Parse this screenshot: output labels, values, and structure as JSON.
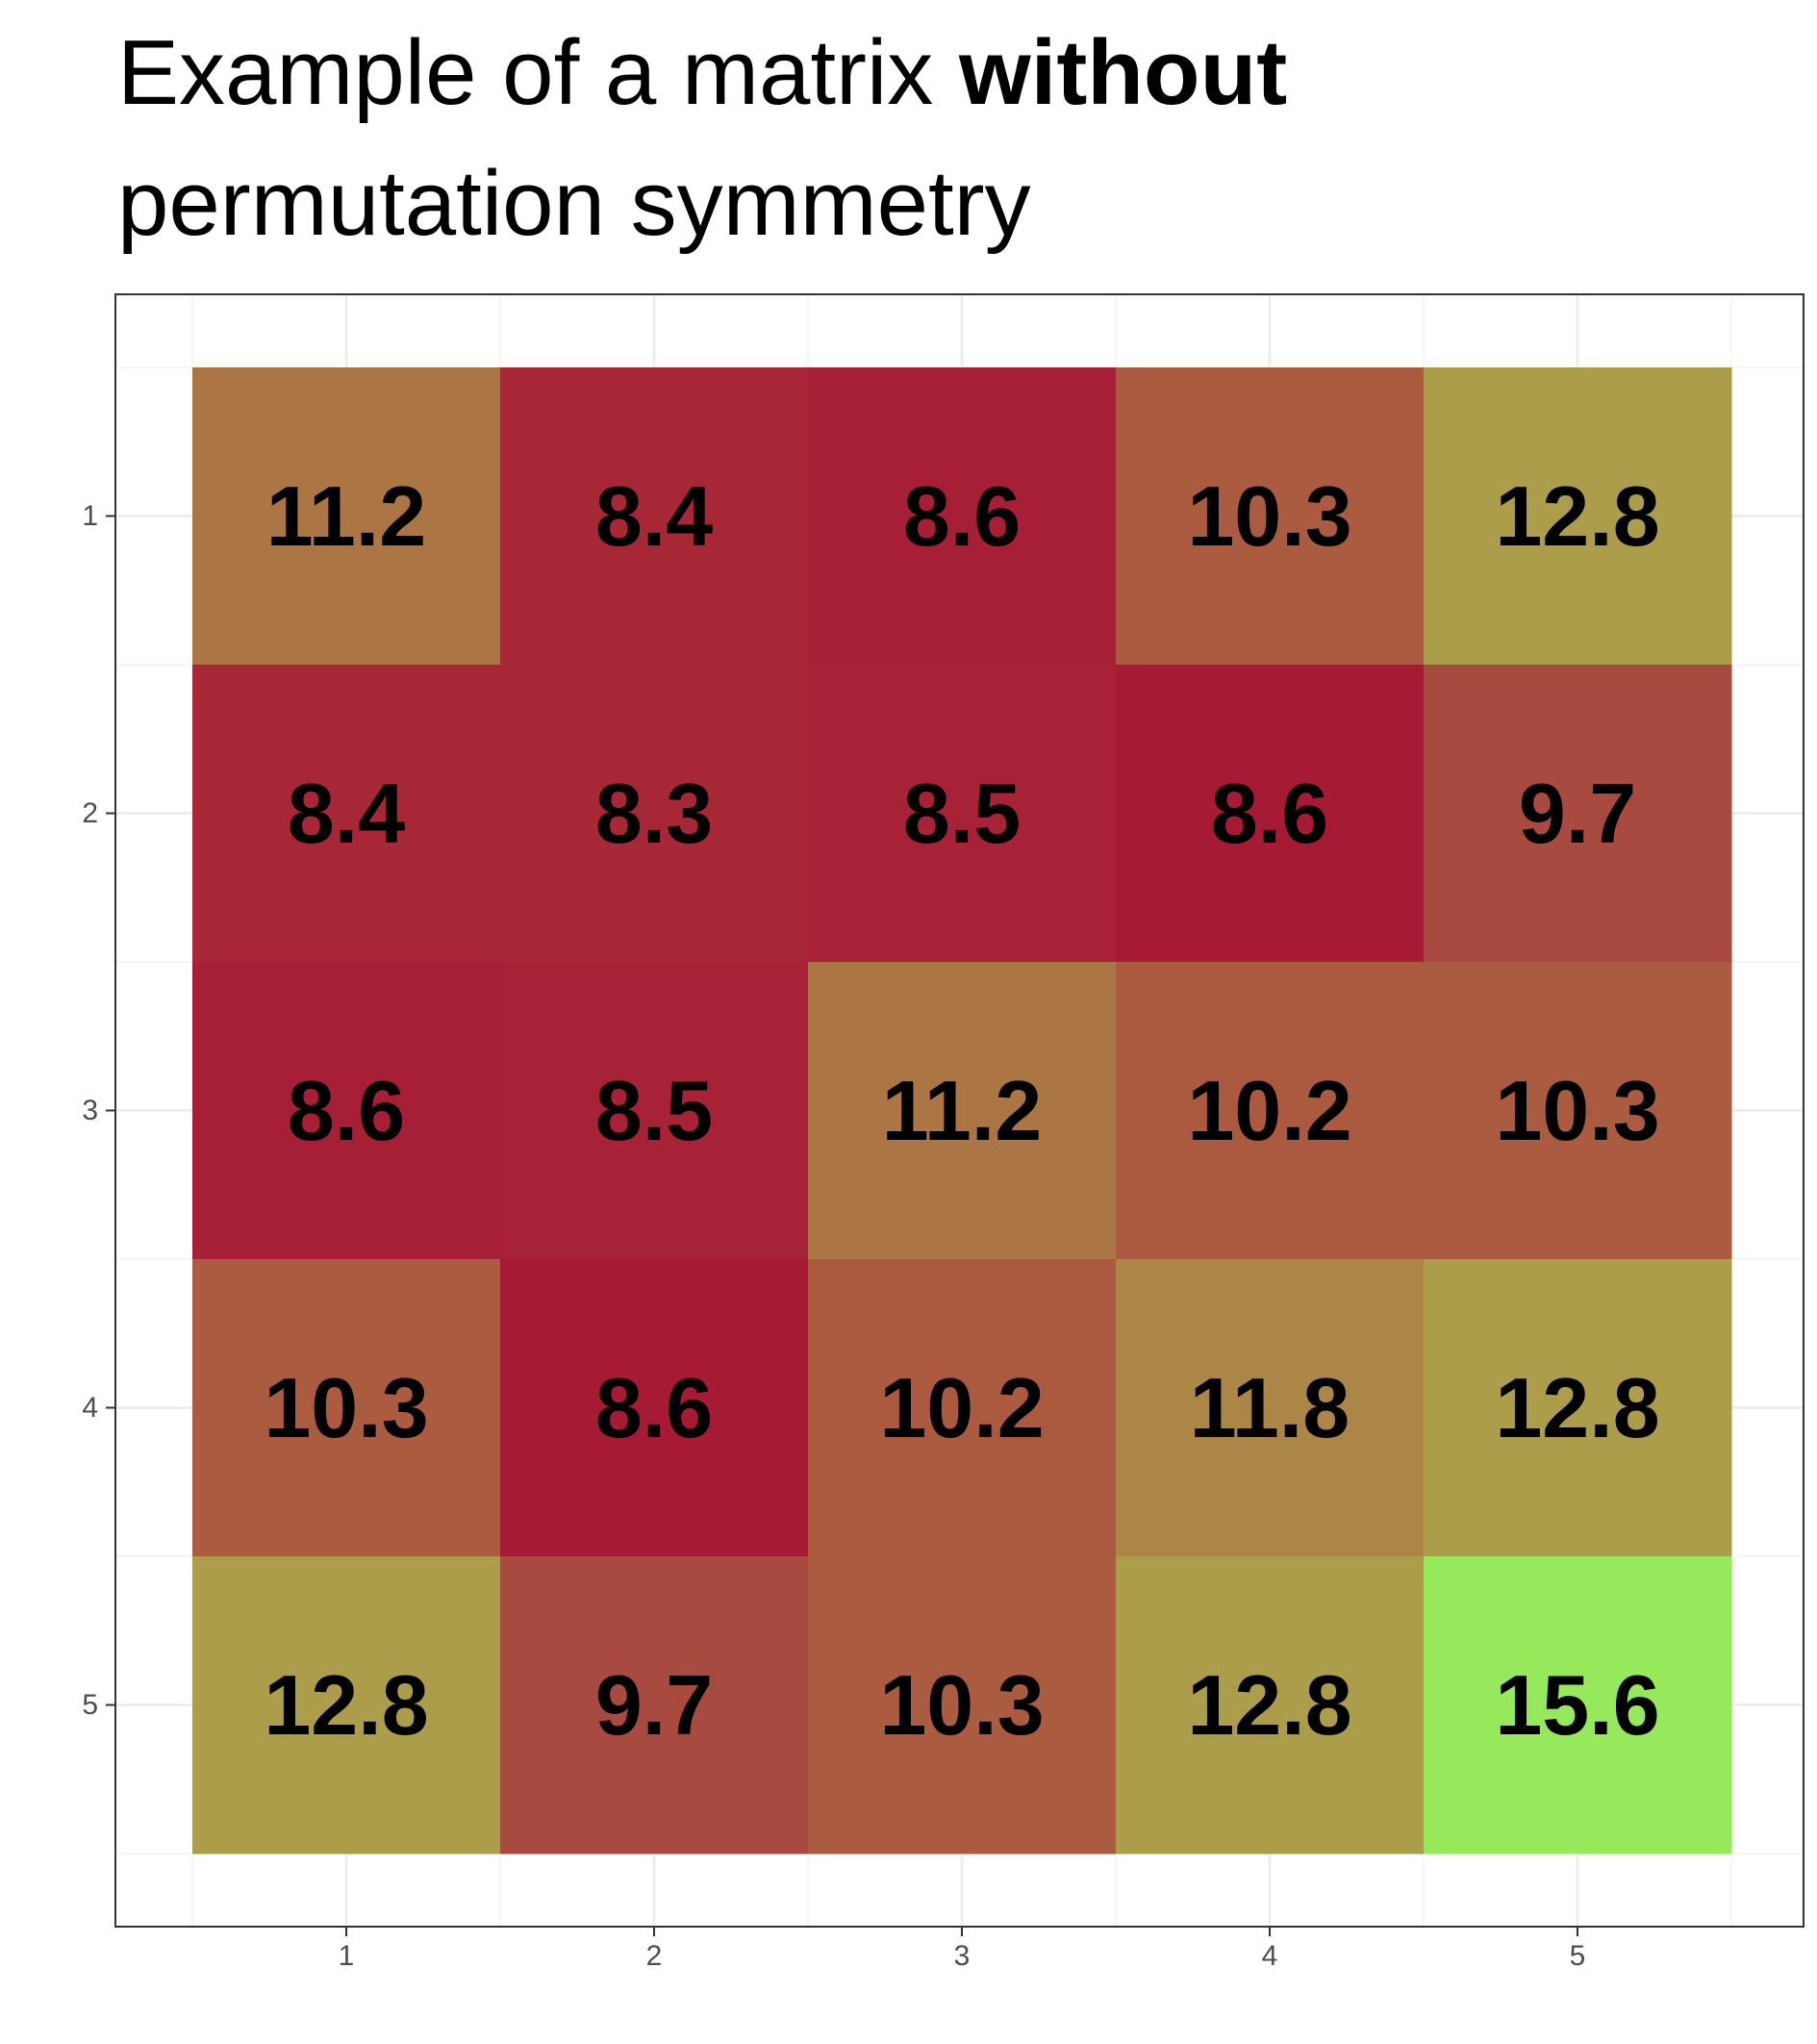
{
  "title": {
    "line1_prefix": "Example of a matrix ",
    "line1_bold": "without",
    "line2": "permutation symmetry"
  },
  "chart_data": {
    "type": "heatmap",
    "title": "Example of a matrix without permutation symmetry",
    "xlabel": "",
    "ylabel": "",
    "x_categories": [
      "1",
      "2",
      "3",
      "4",
      "5"
    ],
    "y_categories": [
      "1",
      "2",
      "3",
      "4",
      "5"
    ],
    "values": [
      [
        11.2,
        8.4,
        8.6,
        10.3,
        12.8
      ],
      [
        8.4,
        8.3,
        8.5,
        8.6,
        9.7
      ],
      [
        8.6,
        8.5,
        11.2,
        10.2,
        10.3
      ],
      [
        10.3,
        8.6,
        10.2,
        11.8,
        12.8
      ],
      [
        12.8,
        9.7,
        10.3,
        12.8,
        15.6
      ]
    ],
    "cell_labels": [
      [
        "11.2",
        "8.4",
        "8.6",
        "10.3",
        "12.8"
      ],
      [
        "8.4",
        "8.3",
        "8.5",
        "8.6",
        "9.7"
      ],
      [
        "8.6",
        "8.5",
        "11.2",
        "10.2",
        "10.3"
      ],
      [
        "10.3",
        "8.6",
        "10.2",
        "11.8",
        "12.8"
      ],
      [
        "12.8",
        "9.7",
        "10.3",
        "12.8",
        "15.6"
      ]
    ],
    "cell_colors": [
      [
        "#ab7544",
        "#a72737",
        "#a61f37",
        "#ab5c40",
        "#ac9d4b"
      ],
      [
        "#a72737",
        "#a72737",
        "#a72237",
        "#a61a34",
        "#a94a40"
      ],
      [
        "#a61f37",
        "#a72237",
        "#ab7544",
        "#ab5a40",
        "#ab5c40"
      ],
      [
        "#ab5c40",
        "#a61a34",
        "#ab5a40",
        "#ac8647",
        "#ac9d4b"
      ],
      [
        "#ac9d4b",
        "#a94a40",
        "#ab5c40",
        "#ac9d4b",
        "#96e95a"
      ]
    ],
    "color_scale": {
      "low": "#a51632",
      "mid": "#ac9d4b",
      "high": "#96e95a"
    },
    "grid": true,
    "legend": "none"
  }
}
